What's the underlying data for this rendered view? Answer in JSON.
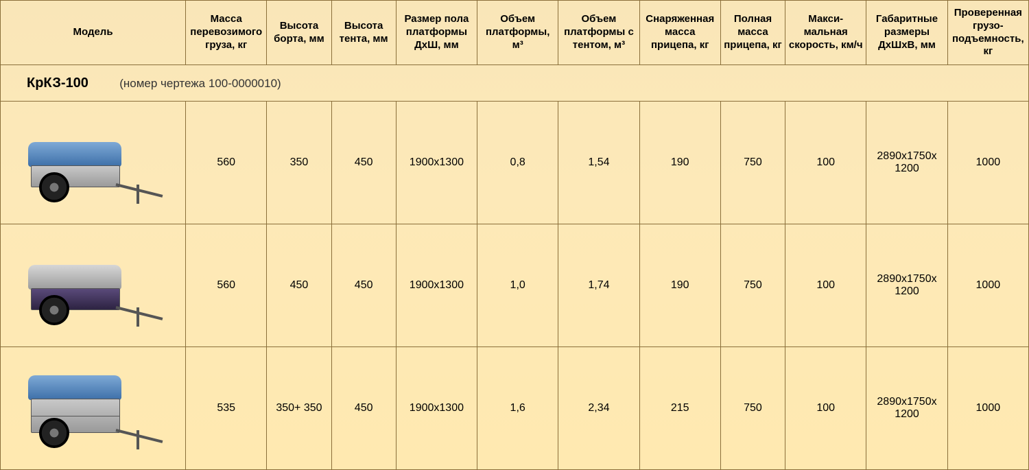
{
  "headers": [
    "Модель",
    "Масса перевозимого груза, кг",
    "Высота борта, мм",
    "Высота тента, мм",
    "Размер пола платформы ДхШ, мм",
    "Объем платформы, м³",
    "Объем платформы с тентом, м³",
    "Снаряженная масса прицепа, кг",
    "Полная масса прицепа, кг",
    "Макси-мальная скорость, км/ч",
    "Габаритные размеры ДхШхВ, мм",
    "Проверенная грузо-подъемность, кг"
  ],
  "section": {
    "model": "КрКЗ-100",
    "drawing": "(номер чертежа  100-0000010)"
  },
  "rows": [
    {
      "trailer": {
        "tarp": "blue",
        "bed": "light",
        "tall": false
      },
      "cells": [
        "560",
        "350",
        "450",
        "1900х1300",
        "0,8",
        "1,54",
        "190",
        "750",
        "100",
        "2890х1750х 1200",
        "1000"
      ]
    },
    {
      "trailer": {
        "tarp": "gray",
        "bed": "dark",
        "tall": false
      },
      "cells": [
        "560",
        "450",
        "450",
        "1900х1300",
        "1,0",
        "1,74",
        "190",
        "750",
        "100",
        "2890х1750х 1200",
        "1000"
      ]
    },
    {
      "trailer": {
        "tarp": "blue",
        "bed": "light",
        "tall": true
      },
      "cells": [
        "535",
        "350+ 350",
        "450",
        "1900х1300",
        "1,6",
        "2,34",
        "215",
        "750",
        "100",
        "2890х1750х 1200",
        "1000"
      ]
    }
  ],
  "style": {
    "border_color": "#8a6f3a",
    "bg_gradient": [
      "#f9e6b8",
      "#ffe9b0"
    ],
    "header_fontsize": 15,
    "cell_fontsize": 16,
    "section_fontsize": 20
  }
}
